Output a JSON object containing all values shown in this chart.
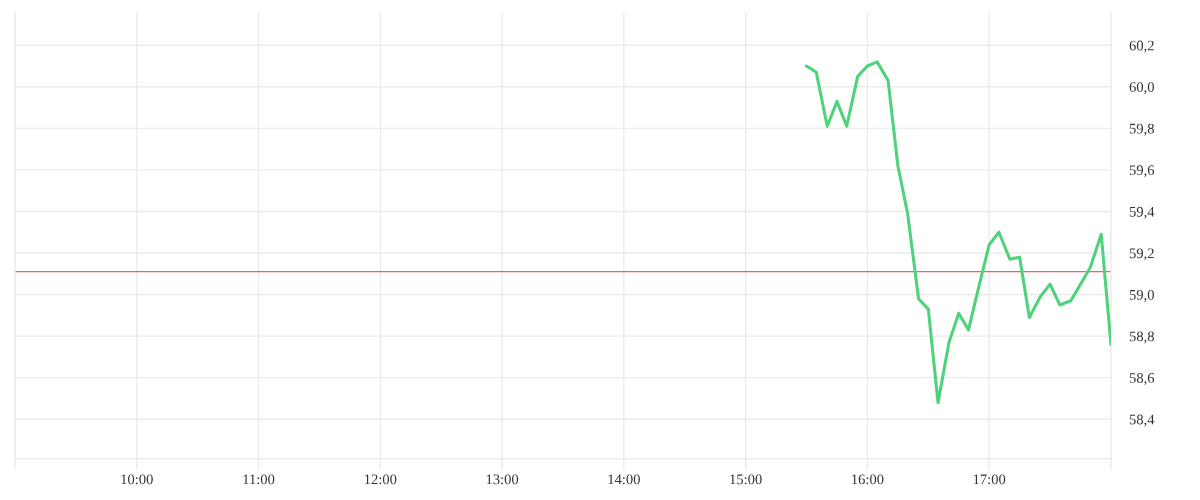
{
  "chart_data": {
    "type": "line",
    "x": [
      15.5,
      15.58,
      15.67,
      15.75,
      15.83,
      15.92,
      16,
      16.08,
      16.17,
      16.25,
      16.33,
      16.42,
      16.5,
      16.58,
      16.67,
      16.75,
      16.83,
      16.92,
      17,
      17.08,
      17.17,
      17.25,
      17.33,
      17.42,
      17.5,
      17.58,
      17.67,
      17.75,
      17.83,
      17.92,
      18
    ],
    "series": [
      {
        "color": "#4fd27c",
        "values": [
          60.1,
          60.07,
          59.81,
          59.93,
          59.81,
          60.05,
          60.1,
          60.12,
          60.03,
          59.62,
          59.39,
          58.98,
          58.93,
          58.48,
          58.77,
          58.91,
          58.83,
          59.05,
          59.24,
          59.3,
          59.17,
          59.18,
          58.89,
          58.99,
          59.05,
          58.95,
          58.97,
          59.05,
          59.13,
          59.29,
          58.76
        ]
      }
    ],
    "xlim": [
      9,
      18
    ],
    "xticks": [
      {
        "value": 9,
        "label": null
      },
      {
        "value": 10,
        "label": "10:00"
      },
      {
        "value": 11,
        "label": "11:00"
      },
      {
        "value": 12,
        "label": "12:00"
      },
      {
        "value": 13,
        "label": "13:00"
      },
      {
        "value": 14,
        "label": "14:00"
      },
      {
        "value": 15,
        "label": "15:00"
      },
      {
        "value": 16,
        "label": "16:00"
      },
      {
        "value": 17,
        "label": "17:00"
      },
      {
        "value": 18,
        "label": null
      }
    ],
    "ylim": [
      58.21,
      60.36
    ],
    "yticks": [
      {
        "value": 58.4,
        "label": "58,4"
      },
      {
        "value": 58.6,
        "label": "58,6"
      },
      {
        "value": 58.8,
        "label": "58,8"
      },
      {
        "value": 59.0,
        "label": "59,0"
      },
      {
        "value": 59.2,
        "label": "59,2"
      },
      {
        "value": 59.4,
        "label": "59,4"
      },
      {
        "value": 59.6,
        "label": "59,6"
      },
      {
        "value": 59.8,
        "label": "59,8"
      },
      {
        "value": 60.0,
        "label": "60,0"
      },
      {
        "value": 60.2,
        "label": "60,2"
      }
    ],
    "grid": true,
    "line_style": "solid",
    "ref_lines": [
      {
        "axis": "y",
        "value": 59.11,
        "color": "#ff5a5f"
      }
    ]
  }
}
